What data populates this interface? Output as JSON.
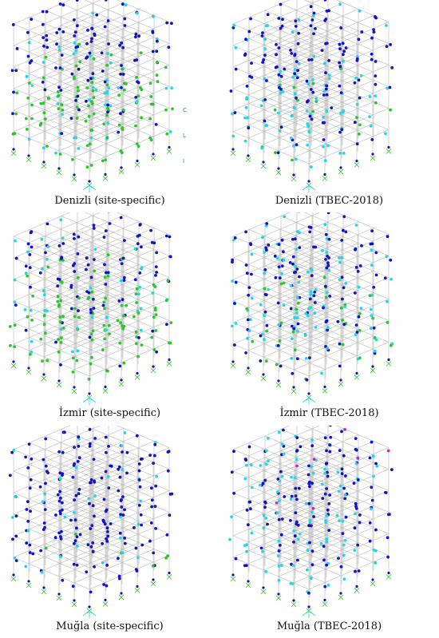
{
  "figure": {
    "colors": {
      "frame": "#b8b8b8",
      "hinge_blue": "#1212c8",
      "hinge_cyan": "#22d8e6",
      "hinge_green": "#28c828",
      "hinge_magenta": "#d020d0"
    },
    "panels": [
      {
        "caption": "Denizli (site-specific)",
        "style": "green-heavy",
        "side_ticks": [
          "C",
          "L",
          "I"
        ]
      },
      {
        "caption": "Denizli (TBEC-2018)",
        "style": "cyan-heavy",
        "side_ticks": []
      },
      {
        "caption": "İzmir (site-specific)",
        "style": "green-heavy",
        "side_ticks": []
      },
      {
        "caption": "İzmir (TBEC-2018)",
        "style": "cyan-mixed",
        "side_ticks": []
      },
      {
        "caption": "Muğla (site-specific)",
        "style": "blue-heavy",
        "side_ticks": []
      },
      {
        "caption": "Muğla (TBEC-2018)",
        "style": "blue-cyan",
        "side_ticks": []
      }
    ]
  }
}
